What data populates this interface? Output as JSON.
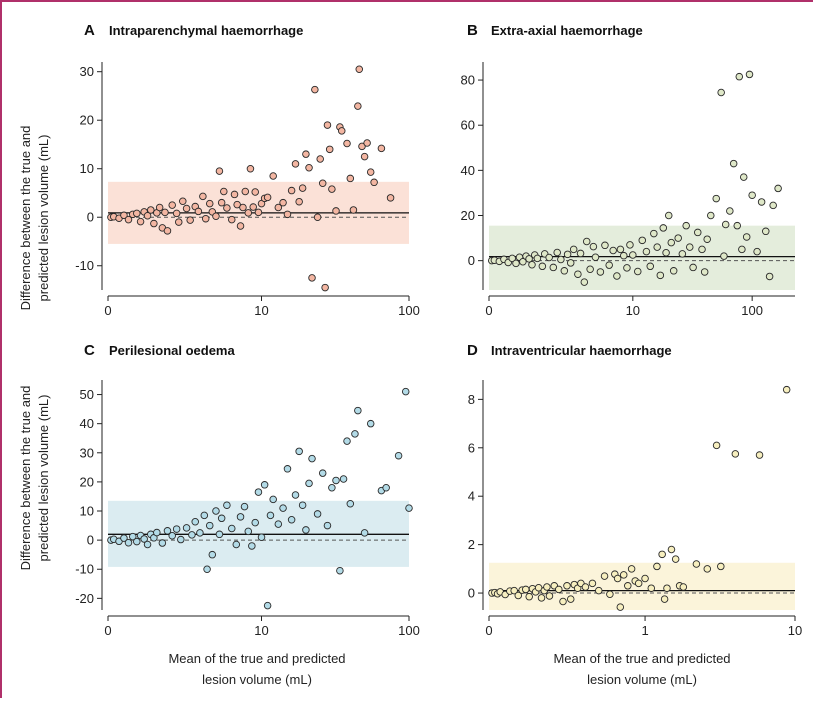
{
  "figure": {
    "frame_color": "#b0306a",
    "y_label_lines": [
      "Difference between the true and",
      "predicted lesion volume (mL)"
    ],
    "x_label_lines": [
      "Mean of the true and predicted",
      "lesion volume (mL)"
    ]
  },
  "chart_data": [
    {
      "type": "scatter",
      "letter": "A",
      "title": "Intraparenchymal haemorrhage",
      "x_scale": "symlog",
      "xlim": [
        0,
        100
      ],
      "x_ticks": [
        0,
        10,
        100
      ],
      "ylim": [
        -15,
        32
      ],
      "y_ticks": [
        -10,
        0,
        10,
        20,
        30
      ],
      "band": [
        -5.5,
        7.3
      ],
      "mean_bias": 0.9,
      "fill_color": "#f3b6a2",
      "band_color": "#fbe1d7",
      "points": [
        [
          0.05,
          0.0
        ],
        [
          0.1,
          0.1
        ],
        [
          0.2,
          -0.2
        ],
        [
          0.3,
          0.4
        ],
        [
          0.4,
          -0.5
        ],
        [
          0.5,
          0.6
        ],
        [
          0.6,
          0.8
        ],
        [
          0.7,
          -0.9
        ],
        [
          0.8,
          1.1
        ],
        [
          0.9,
          0.3
        ],
        [
          1.0,
          1.5
        ],
        [
          1.1,
          -1.3
        ],
        [
          1.2,
          0.9
        ],
        [
          1.3,
          2.0
        ],
        [
          1.4,
          -2.2
        ],
        [
          1.5,
          1.0
        ],
        [
          1.6,
          -2.8
        ],
        [
          1.8,
          2.5
        ],
        [
          2.0,
          0.8
        ],
        [
          2.1,
          -1.0
        ],
        [
          2.3,
          3.3
        ],
        [
          2.5,
          1.8
        ],
        [
          2.7,
          -0.6
        ],
        [
          3.0,
          2.2
        ],
        [
          3.2,
          1.2
        ],
        [
          3.5,
          4.3
        ],
        [
          3.7,
          -0.3
        ],
        [
          4.0,
          2.8
        ],
        [
          4.2,
          1.1
        ],
        [
          4.5,
          0.2
        ],
        [
          4.8,
          9.5
        ],
        [
          5.0,
          3.0
        ],
        [
          5.2,
          5.3
        ],
        [
          5.5,
          1.9
        ],
        [
          6.0,
          -0.5
        ],
        [
          6.3,
          4.7
        ],
        [
          6.6,
          2.6
        ],
        [
          7.0,
          -1.8
        ],
        [
          7.3,
          2.0
        ],
        [
          7.6,
          5.3
        ],
        [
          8.0,
          0.9
        ],
        [
          8.3,
          10.0
        ],
        [
          8.7,
          2.1
        ],
        [
          9.0,
          5.2
        ],
        [
          9.5,
          1.0
        ],
        [
          10.0,
          2.8
        ],
        [
          10.5,
          3.9
        ],
        [
          11.0,
          4.1
        ],
        [
          12.0,
          8.5
        ],
        [
          13.0,
          2.0
        ],
        [
          14.0,
          3.0
        ],
        [
          15.0,
          0.6
        ],
        [
          16.0,
          5.5
        ],
        [
          17.0,
          11.0
        ],
        [
          18.0,
          3.2
        ],
        [
          19.0,
          6.0
        ],
        [
          20.0,
          13.0
        ],
        [
          21.0,
          10.2
        ],
        [
          22.0,
          -12.5
        ],
        [
          23.0,
          26.3
        ],
        [
          24.0,
          0.0
        ],
        [
          25.0,
          12.0
        ],
        [
          26.0,
          7.0
        ],
        [
          27.0,
          -14.5
        ],
        [
          28.0,
          19.0
        ],
        [
          29.0,
          14.0
        ],
        [
          30.0,
          5.8
        ],
        [
          32.0,
          1.3
        ],
        [
          34.0,
          18.6
        ],
        [
          35.0,
          17.8
        ],
        [
          38.0,
          15.2
        ],
        [
          40.0,
          8.0
        ],
        [
          42.0,
          1.5
        ],
        [
          45.0,
          22.9
        ],
        [
          46.0,
          30.5
        ],
        [
          48.0,
          14.6
        ],
        [
          50.0,
          12.5
        ],
        [
          52.0,
          15.3
        ],
        [
          55.0,
          9.3
        ],
        [
          58.0,
          7.2
        ],
        [
          65.0,
          14.2
        ],
        [
          75.0,
          4.0
        ]
      ]
    },
    {
      "type": "scatter",
      "letter": "B",
      "title": "Extra-axial haemorrhage",
      "x_scale": "symlog",
      "xlim": [
        0,
        170
      ],
      "x_ticks": [
        0,
        10,
        100
      ],
      "ylim": [
        -13,
        88
      ],
      "y_ticks": [
        0,
        20,
        40,
        60,
        80
      ],
      "band": [
        -13,
        15.5
      ],
      "mean_bias": 1.8,
      "fill_color": "#dfe8c8",
      "band_color": "#e4eddc",
      "points": [
        [
          0.05,
          0.0
        ],
        [
          0.1,
          0.2
        ],
        [
          0.2,
          -0.3
        ],
        [
          0.3,
          0.6
        ],
        [
          0.4,
          -0.8
        ],
        [
          0.5,
          1.0
        ],
        [
          0.6,
          -1.2
        ],
        [
          0.7,
          1.5
        ],
        [
          0.8,
          -0.5
        ],
        [
          0.9,
          2.0
        ],
        [
          1.0,
          0.8
        ],
        [
          1.1,
          -1.8
        ],
        [
          1.2,
          2.5
        ],
        [
          1.3,
          1.0
        ],
        [
          1.5,
          -2.5
        ],
        [
          1.6,
          3.0
        ],
        [
          1.8,
          1.4
        ],
        [
          2.0,
          -3.0
        ],
        [
          2.2,
          3.6
        ],
        [
          2.4,
          0.5
        ],
        [
          2.6,
          -4.5
        ],
        [
          2.8,
          2.8
        ],
        [
          3.0,
          -1.0
        ],
        [
          3.2,
          5.0
        ],
        [
          3.5,
          -6.0
        ],
        [
          3.7,
          3.2
        ],
        [
          4.0,
          -9.5
        ],
        [
          4.2,
          8.5
        ],
        [
          4.5,
          -3.8
        ],
        [
          4.8,
          6.2
        ],
        [
          5.0,
          1.5
        ],
        [
          5.5,
          -5.0
        ],
        [
          6.0,
          6.8
        ],
        [
          6.5,
          -2.0
        ],
        [
          7.0,
          4.5
        ],
        [
          7.5,
          -6.8
        ],
        [
          8.0,
          5.0
        ],
        [
          8.5,
          2.2
        ],
        [
          9.0,
          -3.2
        ],
        [
          9.5,
          7.0
        ],
        [
          10.0,
          2.5
        ],
        [
          11.0,
          -4.8
        ],
        [
          12.0,
          9.0
        ],
        [
          13.0,
          4.0
        ],
        [
          14.0,
          -2.5
        ],
        [
          15.0,
          12.0
        ],
        [
          16.0,
          6.0
        ],
        [
          17.0,
          -6.5
        ],
        [
          18.0,
          14.5
        ],
        [
          19.0,
          3.5
        ],
        [
          20.0,
          20.0
        ],
        [
          21.0,
          8.0
        ],
        [
          22.0,
          -4.5
        ],
        [
          24.0,
          10.0
        ],
        [
          26.0,
          3.0
        ],
        [
          28.0,
          15.5
        ],
        [
          30.0,
          6.0
        ],
        [
          32.0,
          -3.0
        ],
        [
          35.0,
          12.5
        ],
        [
          38.0,
          5.0
        ],
        [
          40.0,
          -5.0
        ],
        [
          42.0,
          9.5
        ],
        [
          45.0,
          20.0
        ],
        [
          50.0,
          27.5
        ],
        [
          55.0,
          74.5
        ],
        [
          58.0,
          2.0
        ],
        [
          60.0,
          16.0
        ],
        [
          65.0,
          22.0
        ],
        [
          70.0,
          43.0
        ],
        [
          75.0,
          15.5
        ],
        [
          78.0,
          81.5
        ],
        [
          82.0,
          5.0
        ],
        [
          85.0,
          37.0
        ],
        [
          90.0,
          10.5
        ],
        [
          95.0,
          82.5
        ],
        [
          100.0,
          29.0
        ],
        [
          110.0,
          4.0
        ],
        [
          120.0,
          26.0
        ],
        [
          130.0,
          13.0
        ],
        [
          140.0,
          -7.0
        ],
        [
          150.0,
          24.5
        ],
        [
          165.0,
          32.0
        ]
      ]
    },
    {
      "type": "scatter",
      "letter": "C",
      "title": "Perilesional oedema",
      "x_scale": "symlog",
      "xlim": [
        0,
        115
      ],
      "x_ticks": [
        0,
        10,
        100
      ],
      "ylim": [
        -24,
        55
      ],
      "y_ticks": [
        -20,
        -10,
        0,
        10,
        20,
        30,
        40,
        50
      ],
      "band": [
        -9.2,
        13.5
      ],
      "mean_bias": 2.0,
      "fill_color": "#b3dbe7",
      "band_color": "#dbecf1",
      "points": [
        [
          0.05,
          0.0
        ],
        [
          0.1,
          0.3
        ],
        [
          0.2,
          -0.4
        ],
        [
          0.3,
          0.7
        ],
        [
          0.4,
          -0.9
        ],
        [
          0.5,
          1.2
        ],
        [
          0.6,
          -0.5
        ],
        [
          0.7,
          1.6
        ],
        [
          0.8,
          0.4
        ],
        [
          0.9,
          -1.5
        ],
        [
          1.0,
          2.0
        ],
        [
          1.1,
          0.8
        ],
        [
          1.2,
          2.6
        ],
        [
          1.4,
          -1.0
        ],
        [
          1.6,
          3.2
        ],
        [
          1.8,
          1.5
        ],
        [
          2.0,
          3.8
        ],
        [
          2.2,
          0.2
        ],
        [
          2.5,
          4.2
        ],
        [
          2.8,
          1.8
        ],
        [
          3.0,
          6.3
        ],
        [
          3.3,
          2.5
        ],
        [
          3.6,
          8.5
        ],
        [
          3.8,
          -10.0
        ],
        [
          4.0,
          5.0
        ],
        [
          4.2,
          -5.0
        ],
        [
          4.5,
          10.0
        ],
        [
          4.8,
          2.0
        ],
        [
          5.0,
          7.5
        ],
        [
          5.5,
          12.0
        ],
        [
          6.0,
          4.0
        ],
        [
          6.5,
          -1.5
        ],
        [
          7.0,
          8.0
        ],
        [
          7.5,
          11.5
        ],
        [
          8.0,
          3.0
        ],
        [
          8.5,
          -2.0
        ],
        [
          9.0,
          6.0
        ],
        [
          9.5,
          16.5
        ],
        [
          10.0,
          1.0
        ],
        [
          10.5,
          19.0
        ],
        [
          11.0,
          -22.5
        ],
        [
          11.5,
          8.5
        ],
        [
          12.0,
          14.0
        ],
        [
          13.0,
          5.5
        ],
        [
          14.0,
          11.0
        ],
        [
          15.0,
          24.5
        ],
        [
          16.0,
          7.0
        ],
        [
          17.0,
          15.5
        ],
        [
          18.0,
          30.5
        ],
        [
          19.0,
          12.0
        ],
        [
          20.0,
          3.5
        ],
        [
          21.0,
          19.5
        ],
        [
          22.0,
          28.0
        ],
        [
          24.0,
          9.0
        ],
        [
          26.0,
          23.0
        ],
        [
          28.0,
          5.0
        ],
        [
          30.0,
          18.0
        ],
        [
          32.0,
          20.5
        ],
        [
          34.0,
          -10.5
        ],
        [
          36.0,
          21.0
        ],
        [
          38.0,
          34.0
        ],
        [
          40.0,
          12.5
        ],
        [
          43.0,
          36.5
        ],
        [
          45.0,
          44.5
        ],
        [
          50.0,
          2.5
        ],
        [
          55.0,
          40.0
        ],
        [
          65.0,
          17.0
        ],
        [
          70.0,
          18.0
        ],
        [
          85.0,
          29.0
        ],
        [
          95.0,
          51.0
        ],
        [
          110.0,
          11.0
        ]
      ]
    },
    {
      "type": "scatter",
      "letter": "D",
      "title": "Intraventricular haemorrhage",
      "x_scale": "symlog",
      "xlim": [
        0,
        10
      ],
      "x_ticks": [
        0,
        1,
        10
      ],
      "ylim": [
        -0.7,
        8.8
      ],
      "y_ticks": [
        0,
        2,
        4,
        6,
        8
      ],
      "band": [
        -0.7,
        1.25
      ],
      "mean_bias": 0.1,
      "fill_color": "#f7efbf",
      "band_color": "#fbf4da",
      "points": [
        [
          0.005,
          0.0
        ],
        [
          0.01,
          0.02
        ],
        [
          0.015,
          -0.03
        ],
        [
          0.02,
          0.05
        ],
        [
          0.03,
          -0.06
        ],
        [
          0.04,
          0.08
        ],
        [
          0.05,
          0.1
        ],
        [
          0.06,
          -0.1
        ],
        [
          0.07,
          0.12
        ],
        [
          0.08,
          0.15
        ],
        [
          0.09,
          -0.15
        ],
        [
          0.1,
          0.18
        ],
        [
          0.11,
          0.05
        ],
        [
          0.12,
          0.22
        ],
        [
          0.13,
          -0.2
        ],
        [
          0.14,
          0.1
        ],
        [
          0.15,
          0.25
        ],
        [
          0.16,
          -0.12
        ],
        [
          0.18,
          0.3
        ],
        [
          0.2,
          0.15
        ],
        [
          0.22,
          -0.35
        ],
        [
          0.24,
          0.3
        ],
        [
          0.26,
          -0.25
        ],
        [
          0.28,
          0.35
        ],
        [
          0.3,
          0.2
        ],
        [
          0.32,
          0.4
        ],
        [
          0.35,
          0.25
        ],
        [
          0.4,
          0.4
        ],
        [
          0.45,
          0.1
        ],
        [
          0.5,
          0.7
        ],
        [
          0.55,
          -0.05
        ],
        [
          0.6,
          0.78
        ],
        [
          0.63,
          0.6
        ],
        [
          0.66,
          -0.58
        ],
        [
          0.7,
          0.75
        ],
        [
          0.75,
          0.3
        ],
        [
          0.8,
          1.0
        ],
        [
          0.85,
          0.5
        ],
        [
          0.9,
          0.4
        ],
        [
          1.0,
          0.6
        ],
        [
          1.1,
          0.2
        ],
        [
          1.2,
          1.1
        ],
        [
          1.3,
          1.6
        ],
        [
          1.35,
          -0.25
        ],
        [
          1.4,
          0.2
        ],
        [
          1.5,
          1.8
        ],
        [
          1.6,
          1.4
        ],
        [
          1.7,
          0.3
        ],
        [
          1.8,
          0.25
        ],
        [
          2.2,
          1.2
        ],
        [
          2.6,
          1.0
        ],
        [
          3.0,
          6.1
        ],
        [
          3.2,
          1.1
        ],
        [
          4.0,
          5.75
        ],
        [
          5.8,
          5.7
        ],
        [
          8.8,
          8.4
        ]
      ]
    }
  ]
}
